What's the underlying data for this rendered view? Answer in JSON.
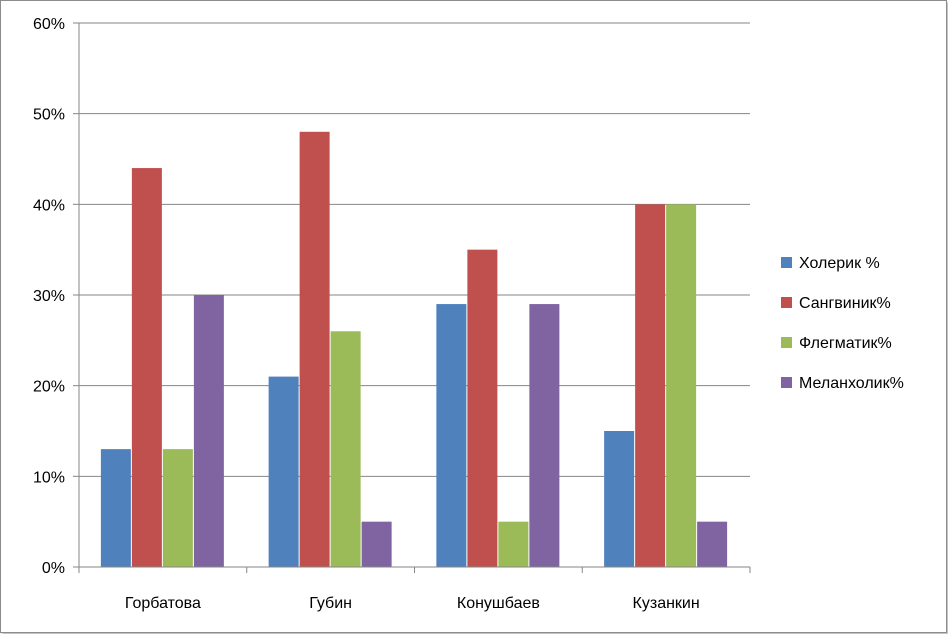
{
  "chart_data": {
    "type": "bar",
    "categories": [
      "Горбатова",
      "Губин",
      "Конушбаев",
      "Кузанкин"
    ],
    "series": [
      {
        "name": "Холерик %",
        "color": "#4f81bd",
        "values": [
          13,
          21,
          29,
          15
        ]
      },
      {
        "name": "Сангвиник%",
        "color": "#c0504d",
        "values": [
          44,
          48,
          35,
          40
        ]
      },
      {
        "name": "Флегматик%",
        "color": "#9bbb59",
        "values": [
          13,
          26,
          5,
          40
        ]
      },
      {
        "name": "Меланхолик%",
        "color": "#8064a2",
        "values": [
          30,
          5,
          29,
          5
        ]
      }
    ],
    "y_ticks": [
      "0%",
      "10%",
      "20%",
      "30%",
      "40%",
      "50%",
      "60%"
    ],
    "ylim": [
      0,
      60
    ],
    "y_unit": "%",
    "grid": true,
    "legend_position": "right"
  }
}
